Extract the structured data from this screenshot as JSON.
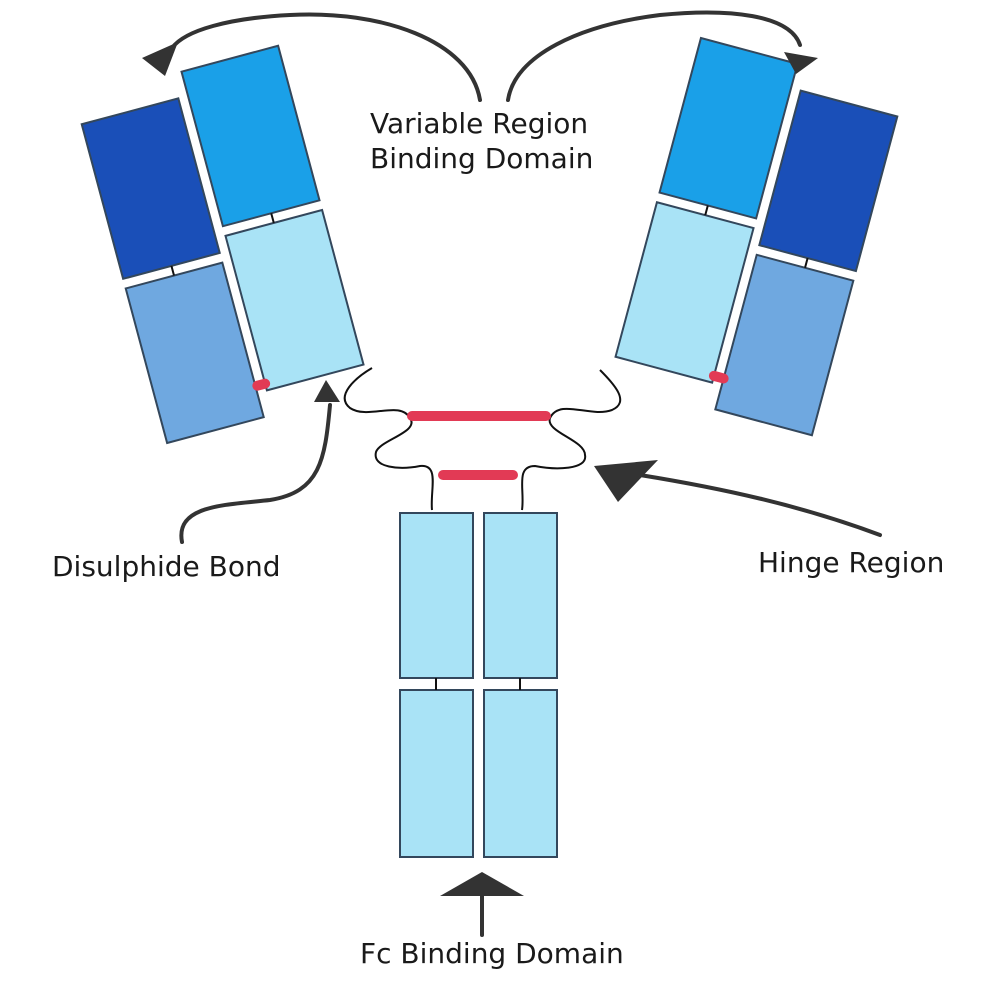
{
  "labels": {
    "variable_region_line1": "Variable Region",
    "variable_region_line2": "Binding Domain",
    "disulphide_bond": "Disulphide Bond",
    "hinge_region": "Hinge Region",
    "fc_binding_domain": "Fc Binding Domain"
  },
  "colors": {
    "variable_heavy": "#1aa0e8",
    "variable_light": "#1a4fb8",
    "constant_light": "#6fa8e0",
    "constant_heavy": "#a9e3f6",
    "disulphide_bond": "#e23a55",
    "arrow": "#333333"
  }
}
